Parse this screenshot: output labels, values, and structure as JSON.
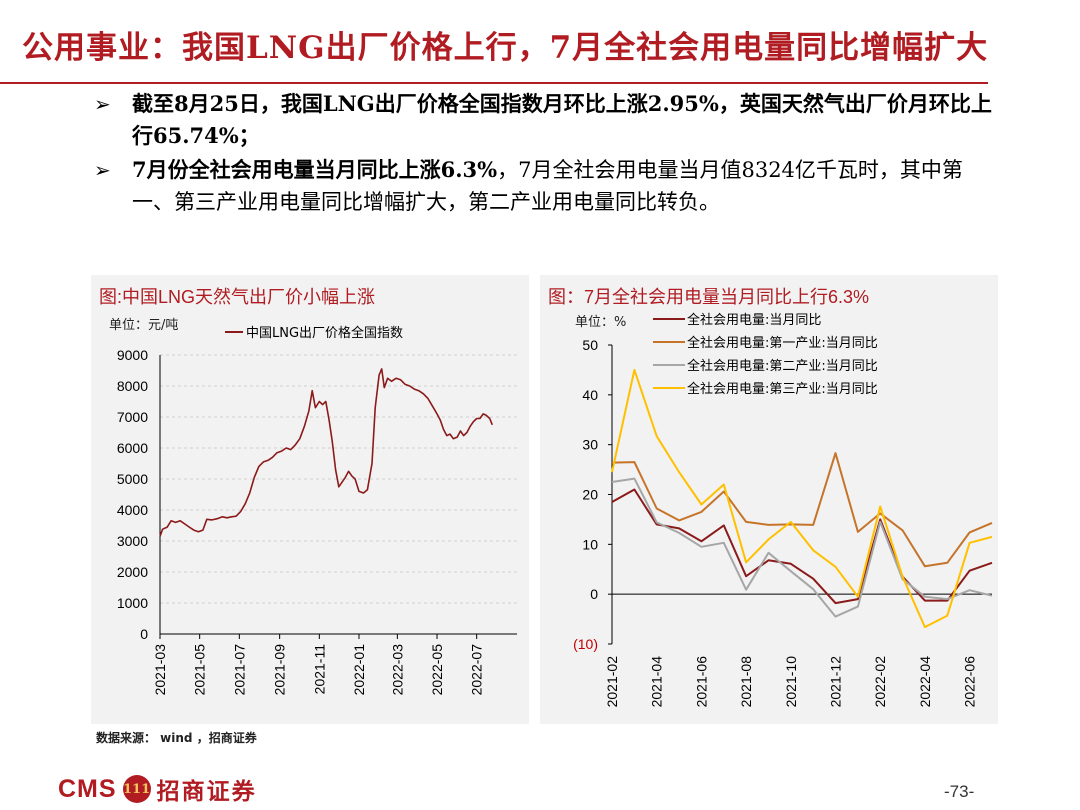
{
  "header": {
    "title": "公用事业：我国LNG出厂价格上行，7月全社会用电量同比增幅扩大"
  },
  "bullets": [
    {
      "arrow": "➢",
      "text_html": "<b>截至8月25日，我国LNG出厂价格全国指数月环比上涨2.95%，英国天然气出厂价月环比上行65.74%；</b>"
    },
    {
      "arrow": "➢",
      "text_html": "<b>7月份全社会用电量当月同比上涨6.3%</b>，7月全社会用电量当月值8324亿千瓦时，其中第一、第三产业用电量同比增幅扩大，第二产业用电量同比转负。"
    }
  ],
  "charts": {
    "left": {
      "title": "图:中国LNG天然气出厂价小幅上涨",
      "unit": "单位：元/吨"
    },
    "right": {
      "title": "图：7月全社会用电量当月同比上行6.3%",
      "unit": "单位：%"
    }
  },
  "chart_data": [
    {
      "type": "line",
      "title": "图:中国LNG天然气出厂价小幅上涨",
      "unit": "单位：元/吨",
      "x_ticks": [
        "2021-03",
        "2021-05",
        "2021-07",
        "2021-09",
        "2021-11",
        "2022-01",
        "2022-03",
        "2022-05",
        "2022-07"
      ],
      "y_ticks": [
        "9000",
        "8000",
        "7000",
        "6000",
        "5000",
        "4000",
        "3000",
        "2000",
        "1000",
        "0"
      ],
      "ylim": [
        0,
        9000
      ],
      "x_start": "2021-03-01",
      "x_end": "2022-09-01",
      "series": [
        {
          "name": "中国LNG出厂价格全国指数",
          "color": "#8b1a1a",
          "points": [
            [
              "2021-03-01",
              3150
            ],
            [
              "2021-03-05",
              3380
            ],
            [
              "2021-03-12",
              3450
            ],
            [
              "2021-03-18",
              3650
            ],
            [
              "2021-03-25",
              3600
            ],
            [
              "2021-04-01",
              3650
            ],
            [
              "2021-04-08",
              3550
            ],
            [
              "2021-04-15",
              3450
            ],
            [
              "2021-04-22",
              3350
            ],
            [
              "2021-04-29",
              3300
            ],
            [
              "2021-05-06",
              3350
            ],
            [
              "2021-05-12",
              3700
            ],
            [
              "2021-05-20",
              3680
            ],
            [
              "2021-05-28",
              3720
            ],
            [
              "2021-06-05",
              3780
            ],
            [
              "2021-06-12",
              3750
            ],
            [
              "2021-06-19",
              3780
            ],
            [
              "2021-06-26",
              3800
            ],
            [
              "2021-07-03",
              3950
            ],
            [
              "2021-07-10",
              4200
            ],
            [
              "2021-07-17",
              4550
            ],
            [
              "2021-07-24",
              5050
            ],
            [
              "2021-07-31",
              5400
            ],
            [
              "2021-08-07",
              5550
            ],
            [
              "2021-08-14",
              5600
            ],
            [
              "2021-08-21",
              5700
            ],
            [
              "2021-08-28",
              5850
            ],
            [
              "2021-09-04",
              5900
            ],
            [
              "2021-09-11",
              6000
            ],
            [
              "2021-09-18",
              5950
            ],
            [
              "2021-09-25",
              6100
            ],
            [
              "2021-10-02",
              6300
            ],
            [
              "2021-10-09",
              6700
            ],
            [
              "2021-10-16",
              7200
            ],
            [
              "2021-10-21",
              7850
            ],
            [
              "2021-10-26",
              7300
            ],
            [
              "2021-11-01",
              7500
            ],
            [
              "2021-11-06",
              7400
            ],
            [
              "2021-11-11",
              7500
            ],
            [
              "2021-11-16",
              6900
            ],
            [
              "2021-11-21",
              6200
            ],
            [
              "2021-11-26",
              5300
            ],
            [
              "2021-12-01",
              4750
            ],
            [
              "2021-12-06",
              4900
            ],
            [
              "2021-12-11",
              5050
            ],
            [
              "2021-12-16",
              5250
            ],
            [
              "2021-12-21",
              5100
            ],
            [
              "2021-12-26",
              5000
            ],
            [
              "2022-01-01",
              4600
            ],
            [
              "2022-01-08",
              4550
            ],
            [
              "2022-01-14",
              4650
            ],
            [
              "2022-01-21",
              5500
            ],
            [
              "2022-01-26",
              7300
            ],
            [
              "2022-02-01",
              8350
            ],
            [
              "2022-02-05",
              8550
            ],
            [
              "2022-02-09",
              7950
            ],
            [
              "2022-02-14",
              8250
            ],
            [
              "2022-02-20",
              8150
            ],
            [
              "2022-02-27",
              8250
            ],
            [
              "2022-03-06",
              8200
            ],
            [
              "2022-03-13",
              8050
            ],
            [
              "2022-03-20",
              8000
            ],
            [
              "2022-03-27",
              7900
            ],
            [
              "2022-04-03",
              7850
            ],
            [
              "2022-04-10",
              7750
            ],
            [
              "2022-04-17",
              7600
            ],
            [
              "2022-04-24",
              7350
            ],
            [
              "2022-05-01",
              7100
            ],
            [
              "2022-05-06",
              6900
            ],
            [
              "2022-05-11",
              6600
            ],
            [
              "2022-05-16",
              6400
            ],
            [
              "2022-05-21",
              6450
            ],
            [
              "2022-05-26",
              6300
            ],
            [
              "2022-06-01",
              6350
            ],
            [
              "2022-06-06",
              6550
            ],
            [
              "2022-06-11",
              6400
            ],
            [
              "2022-06-16",
              6500
            ],
            [
              "2022-06-21",
              6700
            ],
            [
              "2022-06-26",
              6850
            ],
            [
              "2022-07-01",
              6950
            ],
            [
              "2022-07-06",
              6950
            ],
            [
              "2022-07-11",
              7100
            ],
            [
              "2022-07-16",
              7050
            ],
            [
              "2022-07-21",
              6950
            ],
            [
              "2022-07-25",
              6750
            ]
          ]
        }
      ]
    },
    {
      "type": "line",
      "title": "图：7月全社会用电量当月同比上行6.3%",
      "unit": "单位：%",
      "categories": [
        "2021-02",
        "2021-03",
        "2021-04",
        "2021-05",
        "2021-06",
        "2021-07",
        "2021-08",
        "2021-09",
        "2021-10",
        "2021-11",
        "2021-12",
        "2022-01",
        "2022-02",
        "2022-03",
        "2022-04",
        "2022-05",
        "2022-06",
        "2022-07"
      ],
      "x_tick_labels": [
        "2021-02",
        "2021-04",
        "2021-06",
        "2021-08",
        "2021-10",
        "2021-12",
        "2022-02",
        "2022-04",
        "2022-06"
      ],
      "y_ticks": [
        "50",
        "40",
        "30",
        "20",
        "10",
        "0",
        "(10)"
      ],
      "ylim": [
        -10,
        50
      ],
      "series": [
        {
          "name": "全社会用电量:当月同比",
          "color": "#8b1a1a",
          "values": [
            18.5,
            21.0,
            14.0,
            13.2,
            10.6,
            13.8,
            3.6,
            6.8,
            6.1,
            3.1,
            -1.8,
            -1.0,
            15.0,
            3.5,
            -1.3,
            -1.3,
            4.7,
            6.3
          ]
        },
        {
          "name": "全社会用电量:第一产业:当月同比",
          "color": "#c5742a",
          "values": [
            26.4,
            26.5,
            17.2,
            14.8,
            16.5,
            20.6,
            14.5,
            13.9,
            14.0,
            13.9,
            28.3,
            12.5,
            16.2,
            12.8,
            5.6,
            6.3,
            12.4,
            14.3
          ]
        },
        {
          "name": "全社会用电量:第二产业:当月同比",
          "color": "#a6a6a6",
          "values": [
            22.5,
            23.2,
            14.4,
            12.3,
            9.5,
            10.3,
            0.9,
            8.3,
            4.6,
            1.0,
            -4.5,
            -2.5,
            14.5,
            3.0,
            -0.5,
            -1.0,
            0.8,
            -0.3
          ]
        },
        {
          "name": "全社会用电量:第三产业:当月同比",
          "color": "#ffc000",
          "values": [
            24.5,
            45.0,
            31.7,
            24.5,
            18.0,
            22.0,
            6.4,
            11.0,
            14.5,
            8.8,
            5.5,
            -0.5,
            17.6,
            3.5,
            -6.6,
            -4.3,
            10.3,
            11.5
          ]
        }
      ]
    }
  ],
  "source": "数据来源： wind ，招商证券",
  "footer": {
    "logo_text": "CMS",
    "logo_seal": "111",
    "logo_cn": "招商证券",
    "page_number": "-73-"
  }
}
